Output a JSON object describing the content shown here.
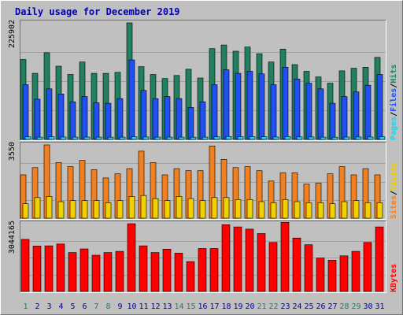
{
  "colors": {
    "background": "#c0c0c0",
    "plot_background": "#c0c0c0",
    "border_light": "#ffffff",
    "border_dark": "#707070",
    "title": "#0000b0",
    "axis_text": "#000000",
    "weekend_day": "#208060",
    "weekday_day": "#0000a0",
    "pages": "#20d0f0",
    "files": "#2050f0",
    "hits": "#208060",
    "visits": "#f0d000",
    "sites": "#f08020",
    "kbytes": "#ff0000"
  },
  "chart_data": {
    "type": "bar",
    "title": "Daily usage for December 2019",
    "categories": [
      "1",
      "2",
      "3",
      "4",
      "5",
      "6",
      "7",
      "8",
      "9",
      "10",
      "11",
      "12",
      "13",
      "14",
      "15",
      "16",
      "17",
      "18",
      "19",
      "20",
      "21",
      "22",
      "23",
      "24",
      "25",
      "26",
      "27",
      "28",
      "29",
      "30",
      "31"
    ],
    "weekend_days": [
      "1",
      "7",
      "8",
      "14",
      "15",
      "21",
      "22",
      "28",
      "29"
    ],
    "panels": [
      {
        "id": "hits",
        "ylim": [
          0,
          225902
        ],
        "y_max_label": "225902",
        "legend": [
          {
            "text": "Pages",
            "color": "#20d0f0"
          },
          {
            "text": "Files",
            "color": "#2050f0"
          },
          {
            "text": "Hits",
            "color": "#208060"
          }
        ],
        "series": [
          {
            "name": "Hits",
            "color": "#208060",
            "values": [
              155000,
              128000,
              168000,
              142000,
              126000,
              150000,
              128000,
              128000,
              130000,
              225902,
              141000,
              126000,
              118000,
              124000,
              136000,
              119000,
              176000,
              183000,
              171000,
              179000,
              166000,
              150000,
              175000,
              145000,
              132000,
              121000,
              109000,
              133000,
              138000,
              140000,
              159000
            ]
          },
          {
            "name": "Files",
            "color": "#2050f0",
            "values": [
              106000,
              78000,
              98000,
              88000,
              73000,
              83000,
              71000,
              70000,
              79000,
              154000,
              95000,
              79000,
              83000,
              79000,
              62000,
              73000,
              106000,
              135000,
              128000,
              132000,
              127000,
              106000,
              140000,
              117000,
              109000,
              98000,
              70000,
              83000,
              92000,
              105000,
              126000
            ]
          },
          {
            "name": "Pages",
            "color": "#20d0f0",
            "values": [
              5000,
              4500,
              5000,
              4800,
              4500,
              4600,
              4400,
              4300,
              4500,
              5200,
              4700,
              4500,
              4400,
              4500,
              4200,
              4400,
              5000,
              5600,
              5200,
              5300,
              5000,
              4800,
              5500,
              4900,
              4700,
              4500,
              4300,
              4600,
              4700,
              4800,
              5100
            ]
          }
        ]
      },
      {
        "id": "visits",
        "ylim": [
          0,
          3550
        ],
        "y_max_label": "3550",
        "legend": [
          {
            "text": "Sites",
            "color": "#f08020"
          },
          {
            "text": "Visits",
            "color": "#f0d000"
          }
        ],
        "series": [
          {
            "name": "Sites",
            "color": "#f08020",
            "values": [
              2100,
              2450,
              3550,
              2700,
              2500,
              2800,
              2350,
              1950,
              2150,
              2400,
              3250,
              2700,
              2100,
              2400,
              2300,
              2300,
              3500,
              2850,
              2450,
              2500,
              2300,
              1800,
              2200,
              2200,
              1650,
              1700,
              2150,
              2500,
              2100,
              2400,
              2100
            ]
          },
          {
            "name": "Visits",
            "color": "#f0d000",
            "values": [
              700,
              1000,
              1050,
              800,
              850,
              850,
              850,
              750,
              850,
              1050,
              1100,
              950,
              850,
              1050,
              950,
              850,
              1000,
              1000,
              900,
              900,
              800,
              750,
              900,
              800,
              750,
              750,
              700,
              800,
              850,
              750,
              750
            ]
          }
        ]
      },
      {
        "id": "kbytes",
        "ylim": [
          0,
          3044165
        ],
        "y_max_label": "3044165",
        "legend": [
          {
            "text": "KBytes",
            "color": "#ff0000"
          }
        ],
        "series": [
          {
            "name": "KBytes",
            "color": "#ff0000",
            "values": [
              2340000,
              2040000,
              2050000,
              2130000,
              1750000,
              1910000,
              1630000,
              1750000,
              1800000,
              3044165,
              2050000,
              1750000,
              1900000,
              1720000,
              1340000,
              1930000,
              1930000,
              3000000,
              2900000,
              2800000,
              2600000,
              2200000,
              3100000,
              2400000,
              2100000,
              1500000,
              1400000,
              1600000,
              1800000,
              2200000,
              2900000
            ]
          }
        ]
      }
    ]
  }
}
